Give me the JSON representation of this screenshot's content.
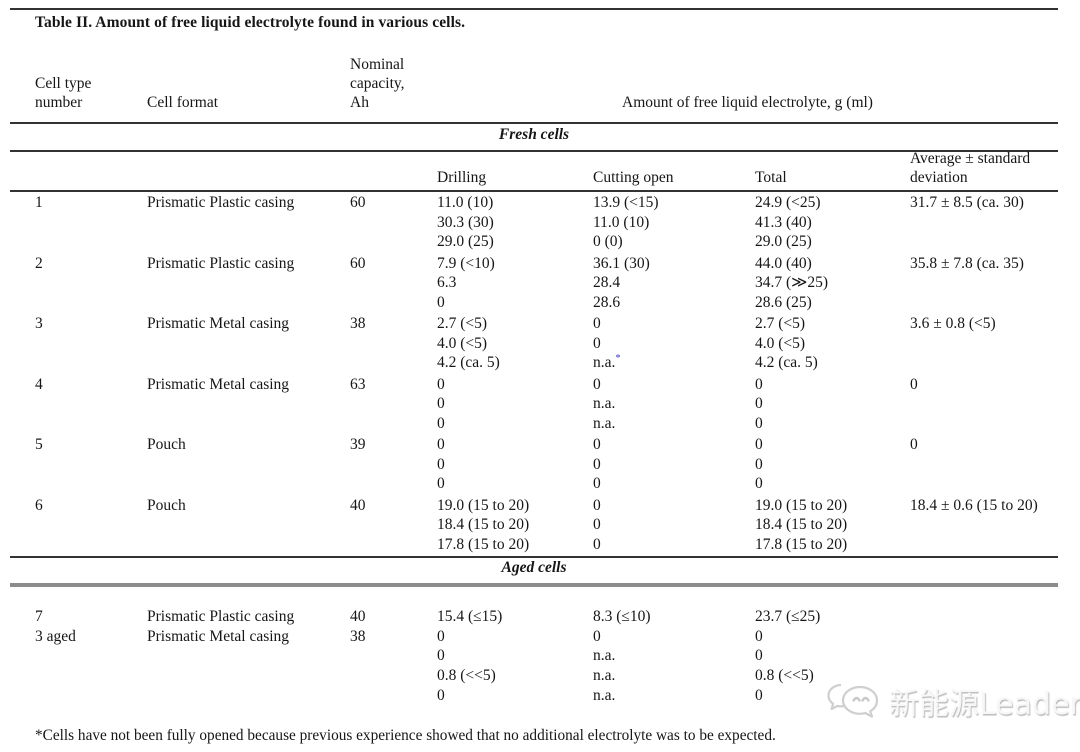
{
  "title": "Table II.  Amount of free liquid electrolyte found in various cells.",
  "table": {
    "columns": [
      {
        "label": "Cell type number",
        "lines": [
          "Cell type",
          "number"
        ]
      },
      {
        "label": "Cell format",
        "lines": [
          "Cell format"
        ]
      },
      {
        "label": "Nominal capacity, Ah",
        "lines": [
          "Nominal",
          "capacity,",
          "Ah"
        ]
      }
    ],
    "group_header": "Amount of free liquid electrolyte, g (ml)",
    "sub_columns": [
      {
        "label": "Drilling",
        "lines": [
          "Drilling"
        ]
      },
      {
        "label": "Cutting open",
        "lines": [
          "Cutting open"
        ]
      },
      {
        "label": "Total",
        "lines": [
          "Total"
        ]
      },
      {
        "label": "Average ± standard deviation",
        "lines": [
          "Average ± standard",
          "deviation"
        ]
      }
    ],
    "sections": [
      {
        "label": "Fresh cells",
        "rows": [
          {
            "num": "1",
            "format": "Prismatic Plastic casing",
            "capacity": "60",
            "drilling": [
              "11.0 (10)",
              "30.3 (30)",
              "29.0 (25)"
            ],
            "cutting_open": [
              "13.9 (<15)",
              "11.0 (10)",
              "0 (0)"
            ],
            "total": [
              "24.9 (<25)",
              "41.3 (40)",
              "29.0 (25)"
            ],
            "average": [
              "31.7 ± 8.5 (ca. 30)"
            ]
          },
          {
            "num": "2",
            "format": "Prismatic Plastic casing",
            "capacity": "60",
            "drilling": [
              "7.9 (<10)",
              "6.3",
              "0"
            ],
            "cutting_open": [
              "36.1 (30)",
              "28.4",
              "28.6"
            ],
            "total": [
              "44.0 (40)",
              "34.7 (≫25)",
              "28.6 (25)"
            ],
            "average": [
              "35.8 ± 7.8 (ca. 35)"
            ]
          },
          {
            "num": "3",
            "format": "Prismatic Metal casing",
            "capacity": "38",
            "drilling": [
              "2.7 (<5)",
              "4.0 (<5)",
              "4.2 (ca. 5)"
            ],
            "cutting_open": [
              "0",
              "0",
              "n.a.*"
            ],
            "total": [
              "2.7 (<5)",
              "4.0 (<5)",
              "4.2 (ca. 5)"
            ],
            "average": [
              "3.6 ± 0.8 (<5)"
            ]
          },
          {
            "num": "4",
            "format": "Prismatic Metal casing",
            "capacity": "63",
            "drilling": [
              "0",
              "0",
              "0"
            ],
            "cutting_open": [
              "0",
              "n.a.",
              "n.a."
            ],
            "total": [
              "0",
              "0",
              "0"
            ],
            "average": [
              "0"
            ]
          },
          {
            "num": "5",
            "format": "Pouch",
            "capacity": "39",
            "drilling": [
              "0",
              "0",
              "0"
            ],
            "cutting_open": [
              "0",
              "0",
              "0"
            ],
            "total": [
              "0",
              "0",
              "0"
            ],
            "average": [
              "0"
            ]
          },
          {
            "num": "6",
            "format": "Pouch",
            "capacity": "40",
            "drilling": [
              "19.0 (15 to 20)",
              "18.4 (15 to 20)",
              "17.8 (15 to 20)"
            ],
            "cutting_open": [
              "0",
              "0",
              "0"
            ],
            "total": [
              "19.0 (15 to 20)",
              "18.4 (15 to 20)",
              "17.8 (15 to 20)"
            ],
            "average": [
              "18.4 ± 0.6 (15 to 20)"
            ]
          }
        ]
      },
      {
        "label": "Aged cells",
        "rows": [
          {
            "num": "7",
            "format": "Prismatic Plastic casing",
            "capacity": "40",
            "drilling": [
              "15.4 (≤15)"
            ],
            "cutting_open": [
              "8.3 (≤10)"
            ],
            "total": [
              "23.7 (≤25)"
            ],
            "average": []
          },
          {
            "num": "3 aged",
            "format": "Prismatic Metal casing",
            "capacity": "38",
            "drilling": [
              "0",
              "0",
              "0.8 (<<5)",
              "0"
            ],
            "cutting_open": [
              "0",
              "n.a.",
              "n.a.",
              "n.a."
            ],
            "total": [
              "0",
              "0",
              "0.8 (<<5)",
              "0"
            ],
            "average": []
          }
        ]
      }
    ]
  },
  "footnote": "*Cells have not been fully opened because previous experience showed that no additional electrolyte was to be expected.",
  "watermark": {
    "text": "新能源Leader"
  },
  "colors": {
    "footnote_marker": "#3b3bd0",
    "rule_dark": "#333333",
    "rule_gray": "#8c8c8c",
    "watermark": "#d9d9d9"
  }
}
